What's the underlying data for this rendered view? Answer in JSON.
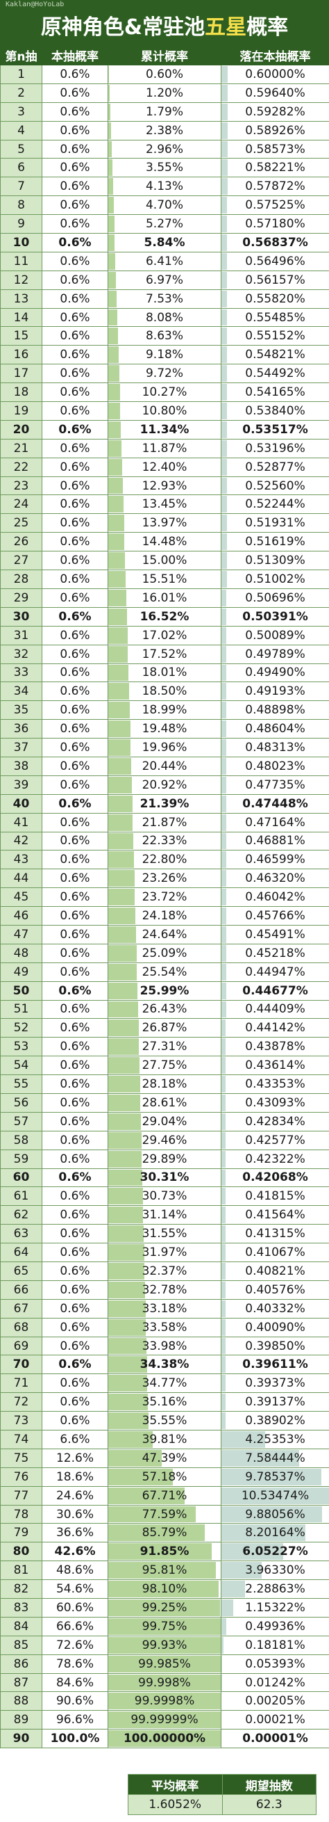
{
  "header": {
    "credit": "Kaklan@HoYoLab",
    "title_part1": "原神角色&常驻池",
    "title_highlight": "五星",
    "title_part2": "概率"
  },
  "colors": {
    "header_bg": "#2e5e22",
    "highlight": "#f5e04a",
    "cumulative_bar": "#b4d49a",
    "fall_bar": "#c8dcd6"
  },
  "columns": [
    "第n抽",
    "本抽概率",
    "累计概率",
    "落在本抽概率"
  ],
  "rows": [
    [
      "1",
      "0.6%",
      "0.60%",
      "0.60000%"
    ],
    [
      "2",
      "0.6%",
      "1.20%",
      "0.59640%"
    ],
    [
      "3",
      "0.6%",
      "1.79%",
      "0.59282%"
    ],
    [
      "4",
      "0.6%",
      "2.38%",
      "0.58926%"
    ],
    [
      "5",
      "0.6%",
      "2.96%",
      "0.58573%"
    ],
    [
      "6",
      "0.6%",
      "3.55%",
      "0.58221%"
    ],
    [
      "7",
      "0.6%",
      "4.13%",
      "0.57872%"
    ],
    [
      "8",
      "0.6%",
      "4.70%",
      "0.57525%"
    ],
    [
      "9",
      "0.6%",
      "5.27%",
      "0.57180%"
    ],
    [
      "10",
      "0.6%",
      "5.84%",
      "0.56837%"
    ],
    [
      "11",
      "0.6%",
      "6.41%",
      "0.56496%"
    ],
    [
      "12",
      "0.6%",
      "6.97%",
      "0.56157%"
    ],
    [
      "13",
      "0.6%",
      "7.53%",
      "0.55820%"
    ],
    [
      "14",
      "0.6%",
      "8.08%",
      "0.55485%"
    ],
    [
      "15",
      "0.6%",
      "8.63%",
      "0.55152%"
    ],
    [
      "16",
      "0.6%",
      "9.18%",
      "0.54821%"
    ],
    [
      "17",
      "0.6%",
      "9.72%",
      "0.54492%"
    ],
    [
      "18",
      "0.6%",
      "10.27%",
      "0.54165%"
    ],
    [
      "19",
      "0.6%",
      "10.80%",
      "0.53840%"
    ],
    [
      "20",
      "0.6%",
      "11.34%",
      "0.53517%"
    ],
    [
      "21",
      "0.6%",
      "11.87%",
      "0.53196%"
    ],
    [
      "22",
      "0.6%",
      "12.40%",
      "0.52877%"
    ],
    [
      "23",
      "0.6%",
      "12.93%",
      "0.52560%"
    ],
    [
      "24",
      "0.6%",
      "13.45%",
      "0.52244%"
    ],
    [
      "25",
      "0.6%",
      "13.97%",
      "0.51931%"
    ],
    [
      "26",
      "0.6%",
      "14.48%",
      "0.51619%"
    ],
    [
      "27",
      "0.6%",
      "15.00%",
      "0.51309%"
    ],
    [
      "28",
      "0.6%",
      "15.51%",
      "0.51002%"
    ],
    [
      "29",
      "0.6%",
      "16.01%",
      "0.50696%"
    ],
    [
      "30",
      "0.6%",
      "16.52%",
      "0.50391%"
    ],
    [
      "31",
      "0.6%",
      "17.02%",
      "0.50089%"
    ],
    [
      "32",
      "0.6%",
      "17.52%",
      "0.49789%"
    ],
    [
      "33",
      "0.6%",
      "18.01%",
      "0.49490%"
    ],
    [
      "34",
      "0.6%",
      "18.50%",
      "0.49193%"
    ],
    [
      "35",
      "0.6%",
      "18.99%",
      "0.48898%"
    ],
    [
      "36",
      "0.6%",
      "19.48%",
      "0.48604%"
    ],
    [
      "37",
      "0.6%",
      "19.96%",
      "0.48313%"
    ],
    [
      "38",
      "0.6%",
      "20.44%",
      "0.48023%"
    ],
    [
      "39",
      "0.6%",
      "20.92%",
      "0.47735%"
    ],
    [
      "40",
      "0.6%",
      "21.39%",
      "0.47448%"
    ],
    [
      "41",
      "0.6%",
      "21.87%",
      "0.47164%"
    ],
    [
      "42",
      "0.6%",
      "22.33%",
      "0.46881%"
    ],
    [
      "43",
      "0.6%",
      "22.80%",
      "0.46599%"
    ],
    [
      "44",
      "0.6%",
      "23.26%",
      "0.46320%"
    ],
    [
      "45",
      "0.6%",
      "23.72%",
      "0.46042%"
    ],
    [
      "46",
      "0.6%",
      "24.18%",
      "0.45766%"
    ],
    [
      "47",
      "0.6%",
      "24.64%",
      "0.45491%"
    ],
    [
      "48",
      "0.6%",
      "25.09%",
      "0.45218%"
    ],
    [
      "49",
      "0.6%",
      "25.54%",
      "0.44947%"
    ],
    [
      "50",
      "0.6%",
      "25.99%",
      "0.44677%"
    ],
    [
      "51",
      "0.6%",
      "26.43%",
      "0.44409%"
    ],
    [
      "52",
      "0.6%",
      "26.87%",
      "0.44142%"
    ],
    [
      "53",
      "0.6%",
      "27.31%",
      "0.43878%"
    ],
    [
      "54",
      "0.6%",
      "27.75%",
      "0.43614%"
    ],
    [
      "55",
      "0.6%",
      "28.18%",
      "0.43353%"
    ],
    [
      "56",
      "0.6%",
      "28.61%",
      "0.43093%"
    ],
    [
      "57",
      "0.6%",
      "29.04%",
      "0.42834%"
    ],
    [
      "58",
      "0.6%",
      "29.46%",
      "0.42577%"
    ],
    [
      "59",
      "0.6%",
      "29.89%",
      "0.42322%"
    ],
    [
      "60",
      "0.6%",
      "30.31%",
      "0.42068%"
    ],
    [
      "61",
      "0.6%",
      "30.73%",
      "0.41815%"
    ],
    [
      "62",
      "0.6%",
      "31.14%",
      "0.41564%"
    ],
    [
      "63",
      "0.6%",
      "31.55%",
      "0.41315%"
    ],
    [
      "64",
      "0.6%",
      "31.97%",
      "0.41067%"
    ],
    [
      "65",
      "0.6%",
      "32.37%",
      "0.40821%"
    ],
    [
      "66",
      "0.6%",
      "32.78%",
      "0.40576%"
    ],
    [
      "67",
      "0.6%",
      "33.18%",
      "0.40332%"
    ],
    [
      "68",
      "0.6%",
      "33.58%",
      "0.40090%"
    ],
    [
      "69",
      "0.6%",
      "33.98%",
      "0.39850%"
    ],
    [
      "70",
      "0.6%",
      "34.38%",
      "0.39611%"
    ],
    [
      "71",
      "0.6%",
      "34.77%",
      "0.39373%"
    ],
    [
      "72",
      "0.6%",
      "35.16%",
      "0.39137%"
    ],
    [
      "73",
      "0.6%",
      "35.55%",
      "0.38902%"
    ],
    [
      "74",
      "6.6%",
      "39.81%",
      "4.25353%"
    ],
    [
      "75",
      "12.6%",
      "47.39%",
      "7.58444%"
    ],
    [
      "76",
      "18.6%",
      "57.18%",
      "9.78537%"
    ],
    [
      "77",
      "24.6%",
      "67.71%",
      "10.53474%"
    ],
    [
      "78",
      "30.6%",
      "77.59%",
      "9.88056%"
    ],
    [
      "79",
      "36.6%",
      "85.79%",
      "8.20164%"
    ],
    [
      "80",
      "42.6%",
      "91.85%",
      "6.05227%"
    ],
    [
      "81",
      "48.6%",
      "95.81%",
      "3.96330%"
    ],
    [
      "82",
      "54.6%",
      "98.10%",
      "2.28863%"
    ],
    [
      "83",
      "60.6%",
      "99.25%",
      "1.15322%"
    ],
    [
      "84",
      "66.6%",
      "99.75%",
      "0.49936%"
    ],
    [
      "85",
      "72.6%",
      "99.93%",
      "0.18181%"
    ],
    [
      "86",
      "78.6%",
      "99.985%",
      "0.05393%"
    ],
    [
      "87",
      "84.6%",
      "99.998%",
      "0.01242%"
    ],
    [
      "88",
      "90.6%",
      "99.9998%",
      "0.00205%"
    ],
    [
      "89",
      "96.6%",
      "99.99999%",
      "0.00021%"
    ],
    [
      "90",
      "100.0%",
      "100.00000%",
      "0.00001%"
    ]
  ],
  "summary": {
    "headers": [
      "平均概率",
      "期望抽数"
    ],
    "values": [
      "1.6052%",
      "62.3"
    ]
  }
}
